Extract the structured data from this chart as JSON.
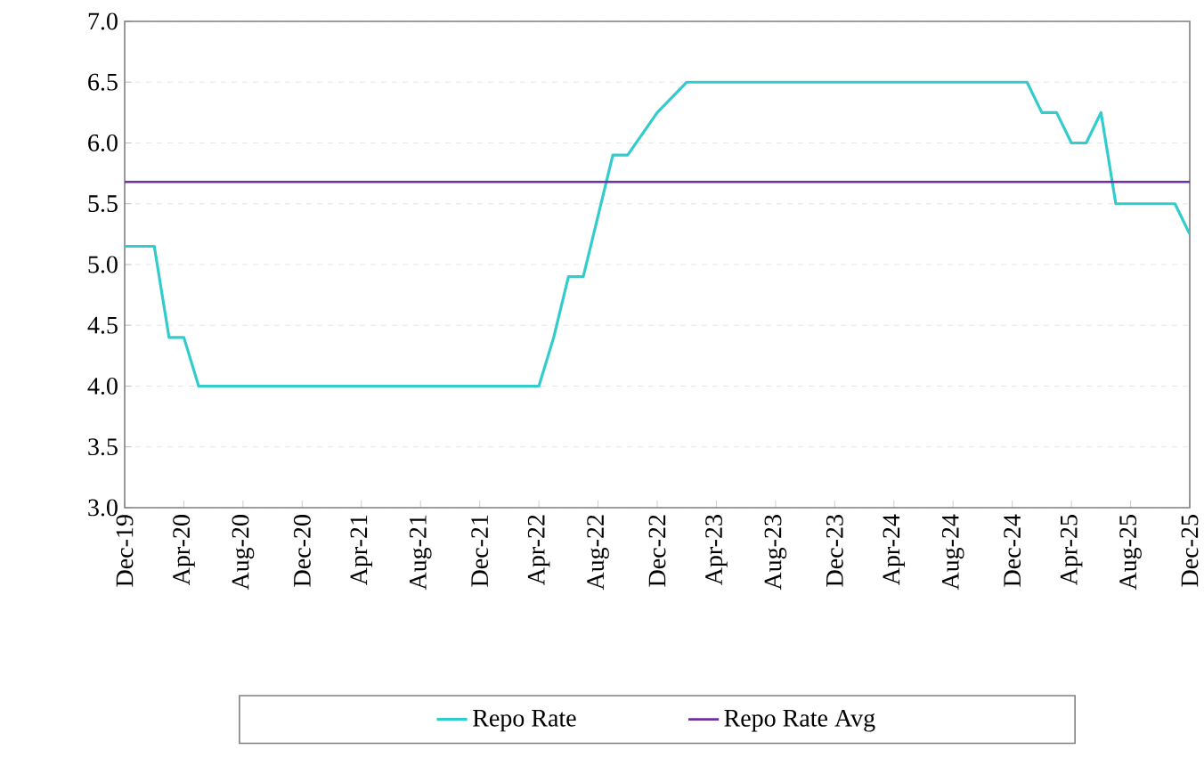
{
  "chart_data": {
    "type": "line",
    "x": [
      "2019-12",
      "2020-02",
      "2020-03",
      "2020-04",
      "2020-05",
      "2022-04",
      "2022-05",
      "2022-06",
      "2022-07",
      "2022-08",
      "2022-09",
      "2022-10",
      "2022-12",
      "2023-02",
      "2025-01",
      "2025-02",
      "2025-03",
      "2025-04",
      "2025-05",
      "2025-06",
      "2025-07",
      "2025-11",
      "2025-12"
    ],
    "series": [
      {
        "name": "Repo Rate",
        "color": "#33cccc",
        "values": [
          5.15,
          5.15,
          4.4,
          4.4,
          4.0,
          4.0,
          4.4,
          4.9,
          4.9,
          5.4,
          5.9,
          5.9,
          6.25,
          6.5,
          6.5,
          6.25,
          6.25,
          6.0,
          6.0,
          6.25,
          5.5,
          5.5,
          5.25
        ]
      }
    ],
    "ref_lines": [
      {
        "axis": "y",
        "value": 5.68,
        "label": "Repo Rate Avg",
        "color": "#7030a0"
      }
    ],
    "xlim": [
      "2019-12",
      "2025-12"
    ],
    "xticks": [
      {
        "value": "2019-12",
        "label": "Dec-19"
      },
      {
        "value": "2020-04",
        "label": "Apr-20"
      },
      {
        "value": "2020-08",
        "label": "Aug-20"
      },
      {
        "value": "2020-12",
        "label": "Dec-20"
      },
      {
        "value": "2021-04",
        "label": "Apr-21"
      },
      {
        "value": "2021-08",
        "label": "Aug-21"
      },
      {
        "value": "2021-12",
        "label": "Dec-21"
      },
      {
        "value": "2022-04",
        "label": "Apr-22"
      },
      {
        "value": "2022-08",
        "label": "Aug-22"
      },
      {
        "value": "2022-12",
        "label": "Dec-22"
      },
      {
        "value": "2023-04",
        "label": "Apr-23"
      },
      {
        "value": "2023-08",
        "label": "Aug-23"
      },
      {
        "value": "2023-12",
        "label": "Dec-23"
      },
      {
        "value": "2024-04",
        "label": "Apr-24"
      },
      {
        "value": "2024-08",
        "label": "Aug-24"
      },
      {
        "value": "2024-12",
        "label": "Dec-24"
      },
      {
        "value": "2025-04",
        "label": "Apr-25"
      },
      {
        "value": "2025-08",
        "label": "Aug-25"
      },
      {
        "value": "2025-12",
        "label": "Dec-25"
      }
    ],
    "ylim": [
      3.0,
      7.0
    ],
    "yticks": [
      {
        "value": 3.0,
        "label": "3.0"
      },
      {
        "value": 3.5,
        "label": "3.5"
      },
      {
        "value": 4.0,
        "label": "4.0"
      },
      {
        "value": 4.5,
        "label": "4.5"
      },
      {
        "value": 5.0,
        "label": "5.0"
      },
      {
        "value": 5.5,
        "label": "5.5"
      },
      {
        "value": 6.0,
        "label": "6.0"
      },
      {
        "value": 6.5,
        "label": "6.5"
      },
      {
        "value": 7.0,
        "label": "7.0"
      }
    ],
    "grid": "y",
    "legend": "bottom"
  }
}
